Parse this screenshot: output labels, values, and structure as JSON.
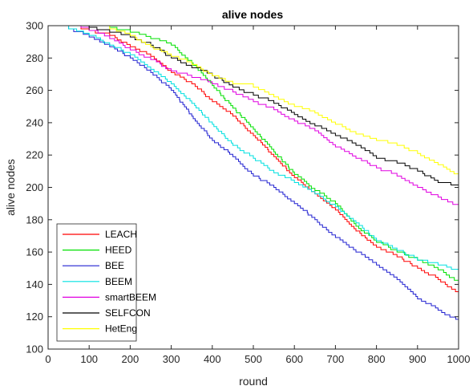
{
  "chart_data": {
    "type": "line",
    "title": "alive nodes",
    "xlabel": "round",
    "ylabel": "alive nodes",
    "xlim": [
      0,
      1000
    ],
    "ylim": [
      100,
      300
    ],
    "xticks": [
      0,
      100,
      200,
      300,
      400,
      500,
      600,
      700,
      800,
      900,
      1000
    ],
    "yticks": [
      100,
      120,
      140,
      160,
      180,
      200,
      220,
      240,
      260,
      280,
      300
    ],
    "grid": false,
    "legend_position": "bottom-left",
    "series": [
      {
        "name": "LEACH",
        "color": "#ff0000",
        "x": [
          0,
          80,
          100,
          150,
          200,
          250,
          300,
          350,
          400,
          450,
          500,
          550,
          600,
          650,
          700,
          750,
          800,
          850,
          900,
          950,
          1000
        ],
        "y": [
          300,
          298,
          297,
          294,
          287,
          281,
          271,
          264,
          253,
          244,
          232,
          219,
          206,
          196,
          186,
          173,
          163,
          157,
          150,
          143,
          134
        ]
      },
      {
        "name": "HEED",
        "color": "#00e000",
        "x": [
          0,
          130,
          150,
          200,
          250,
          300,
          350,
          400,
          450,
          500,
          550,
          600,
          650,
          700,
          750,
          800,
          850,
          900,
          950,
          1000
        ],
        "y": [
          300,
          300,
          299,
          296,
          292,
          288,
          277,
          263,
          249,
          236,
          222,
          208,
          198,
          190,
          176,
          166,
          160,
          155,
          149,
          141
        ]
      },
      {
        "name": "BEE",
        "color": "#2020d0",
        "x": [
          0,
          50,
          100,
          150,
          200,
          250,
          300,
          350,
          400,
          450,
          500,
          550,
          600,
          650,
          700,
          750,
          800,
          850,
          900,
          950,
          1000
        ],
        "y": [
          300,
          298,
          293,
          287,
          280,
          271,
          260,
          244,
          229,
          219,
          207,
          200,
          190,
          180,
          169,
          160,
          152,
          143,
          131,
          124,
          117
        ]
      },
      {
        "name": "BEEM",
        "color": "#00e0e0",
        "x": [
          0,
          50,
          100,
          150,
          200,
          250,
          300,
          350,
          400,
          450,
          500,
          550,
          600,
          650,
          700,
          750,
          800,
          850,
          900,
          950,
          1000
        ],
        "y": [
          300,
          298,
          294,
          288,
          282,
          273,
          264,
          252,
          239,
          226,
          218,
          209,
          203,
          196,
          188,
          178,
          167,
          161,
          155,
          152,
          148
        ]
      },
      {
        "name": "smartBEEM",
        "color": "#e000e0",
        "x": [
          0,
          80,
          100,
          150,
          200,
          250,
          300,
          350,
          400,
          450,
          500,
          550,
          600,
          650,
          700,
          750,
          800,
          850,
          900,
          950,
          1000
        ],
        "y": [
          300,
          299,
          297,
          292,
          285,
          279,
          272,
          268,
          264,
          259,
          253,
          248,
          241,
          235,
          225,
          218,
          212,
          207,
          200,
          194,
          188
        ]
      },
      {
        "name": "SELFCON",
        "color": "#000000",
        "x": [
          0,
          100,
          150,
          200,
          250,
          300,
          350,
          400,
          450,
          500,
          550,
          600,
          650,
          700,
          750,
          800,
          850,
          900,
          950,
          1000
        ],
        "y": [
          300,
          299,
          296,
          293,
          288,
          280,
          274,
          269,
          262,
          257,
          252,
          245,
          238,
          232,
          226,
          218,
          215,
          210,
          203,
          200
        ]
      },
      {
        "name": "HetEng",
        "color": "#ffff00",
        "x": [
          0,
          100,
          150,
          200,
          250,
          300,
          350,
          400,
          450,
          500,
          550,
          600,
          650,
          700,
          750,
          800,
          850,
          900,
          950,
          1000
        ],
        "y": [
          300,
          300,
          298,
          294,
          287,
          281,
          276,
          269,
          264,
          262,
          256,
          250,
          246,
          239,
          233,
          229,
          226,
          221,
          214,
          207
        ]
      }
    ]
  }
}
